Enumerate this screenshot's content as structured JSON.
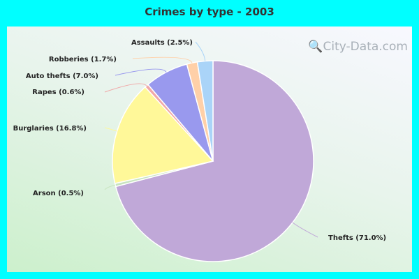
{
  "chart_data": {
    "type": "pie",
    "title": "Crimes by type - 2003",
    "slices": [
      {
        "label": "Thefts (71.0%)",
        "value": 71.0,
        "color": "#c0a8d8"
      },
      {
        "label": "Arson (0.5%)",
        "value": 0.5,
        "color": "#c8e4c0"
      },
      {
        "label": "Burglaries (16.8%)",
        "value": 16.8,
        "color": "#fff899"
      },
      {
        "label": "Rapes (0.6%)",
        "value": 0.6,
        "color": "#f0a8a8"
      },
      {
        "label": "Auto thefts (7.0%)",
        "value": 7.0,
        "color": "#9999ee"
      },
      {
        "label": "Robberies (1.7%)",
        "value": 1.7,
        "color": "#ffd0a8"
      },
      {
        "label": "Assaults (2.5%)",
        "value": 2.5,
        "color": "#aad4f8"
      }
    ],
    "start": "top",
    "direction": "clockwise"
  },
  "watermark": "City-Data.com"
}
